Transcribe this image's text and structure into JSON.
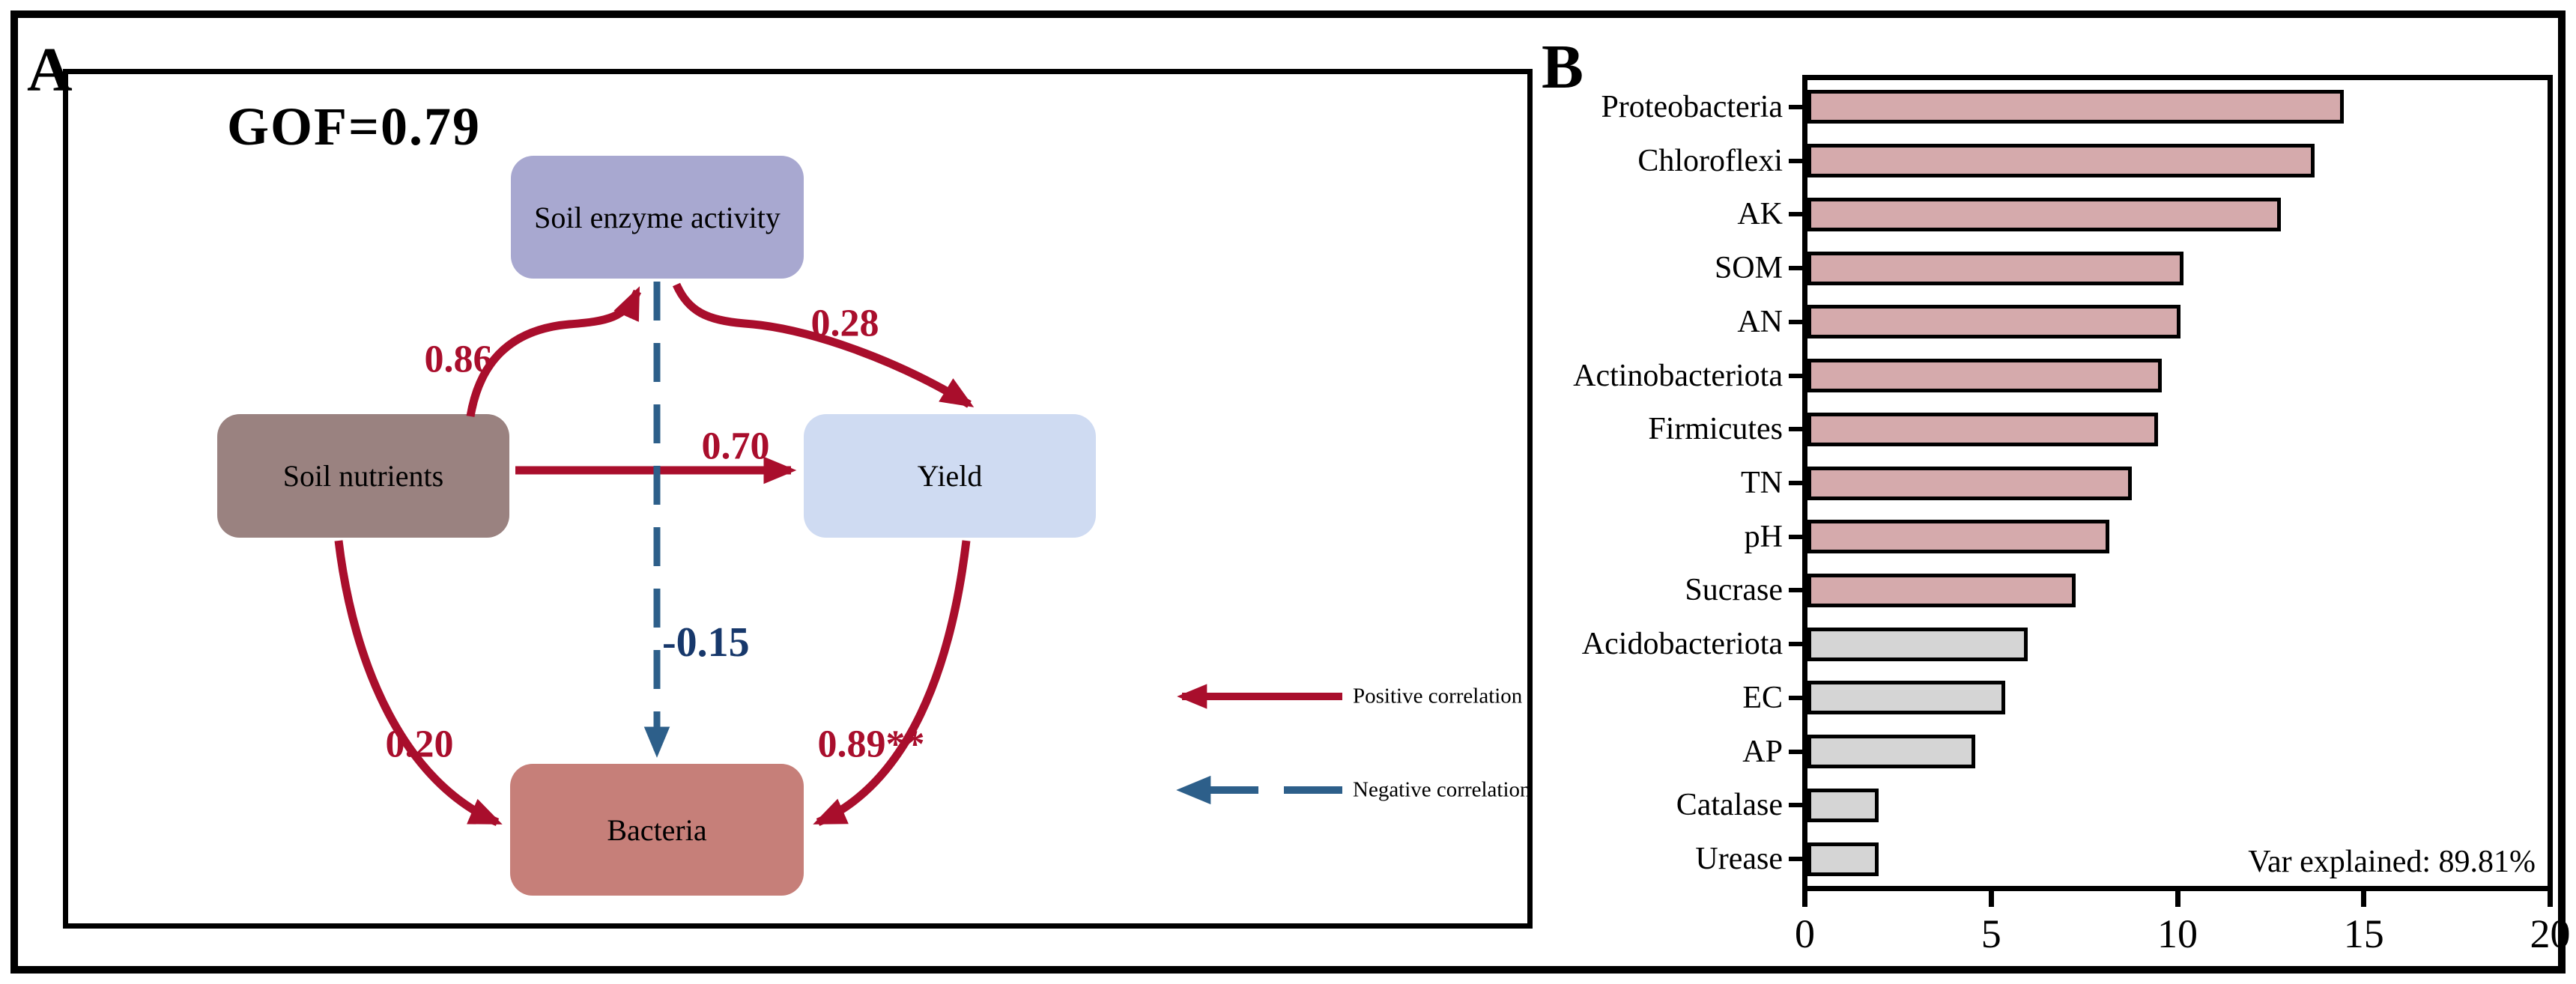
{
  "panel_a": {
    "label": "A",
    "gof": "GOF=0.79",
    "nodes": {
      "enzyme": {
        "label": "Soil enzyme activity",
        "color": "#a8a8d0"
      },
      "nutrients": {
        "label": "Soil nutrients",
        "color": "#9a8280"
      },
      "yield": {
        "label": "Yield",
        "color": "#cfdbf2"
      },
      "bacteria": {
        "label": "Bacteria",
        "color": "#c67f79"
      }
    },
    "paths": [
      {
        "from": "Soil nutrients",
        "to": "Soil enzyme activity",
        "coef": "0.86",
        "type": "positive"
      },
      {
        "from": "Soil enzyme activity",
        "to": "Yield",
        "coef": "0.28",
        "type": "positive"
      },
      {
        "from": "Soil nutrients",
        "to": "Yield",
        "coef": "0.70",
        "type": "positive"
      },
      {
        "from": "Soil enzyme activity",
        "to": "Bacteria",
        "coef": "-0.15",
        "type": "negative"
      },
      {
        "from": "Soil nutrients",
        "to": "Bacteria",
        "coef": "0.20",
        "type": "positive"
      },
      {
        "from": "Yield",
        "to": "Bacteria",
        "coef": "0.89**",
        "type": "positive"
      }
    ],
    "coefficients": {
      "nutrients_to_enzyme": "0.86",
      "enzyme_to_yield": "0.28",
      "nutrients_to_yield": "0.70",
      "enzyme_to_bacteria": "-0.15",
      "nutrients_to_bacteria": "0.20",
      "yield_to_bacteria": "0.89**"
    },
    "legend": {
      "positive": {
        "label": "Positive correlation",
        "color": "#a90e2c",
        "style": "solid"
      },
      "negative": {
        "label": "Negative correlation",
        "color": "#2d5f8a",
        "style": "dashed"
      }
    },
    "colors": {
      "positive_path": "#a90e2c",
      "negative_path": "#2d5f8a",
      "positive_coef_text": "#a90e2c",
      "negative_coef_text": "#17386b"
    }
  },
  "panel_b": {
    "label": "B",
    "annotation": "Var explained: 89.81%"
  },
  "chart_data": {
    "type": "bar",
    "orientation": "horizontal",
    "title": "",
    "xlabel": "",
    "ylabel": "",
    "xlim": [
      0,
      20
    ],
    "xticks": [
      0,
      5,
      10,
      15,
      20
    ],
    "grid": false,
    "legend_position": "none",
    "categories": [
      "Proteobacteria",
      "Chloroflexi",
      "AK",
      "SOM",
      "AN",
      "Actinobacteriota",
      "Firmicutes",
      "TN",
      "pH",
      "Sucrase",
      "Acidobacteriota",
      "EC",
      "AP",
      "Catalase",
      "Urease"
    ],
    "values": [
      14.4,
      13.6,
      12.7,
      10.1,
      10.0,
      9.5,
      9.4,
      8.7,
      8.1,
      7.2,
      5.9,
      5.3,
      4.5,
      1.9,
      1.9
    ],
    "bar_colors": [
      "#d5aaac",
      "#d5aaac",
      "#d5aaac",
      "#d5aaac",
      "#d5aaac",
      "#d5aaac",
      "#d5aaac",
      "#d5aaac",
      "#d5aaac",
      "#d5aaac",
      "#d5d5d5",
      "#d5d5d5",
      "#d5d5d5",
      "#d5d5d5",
      "#d5d5d5"
    ],
    "bar_border_color": "#000000",
    "annotation": "Var explained: 89.81%"
  }
}
